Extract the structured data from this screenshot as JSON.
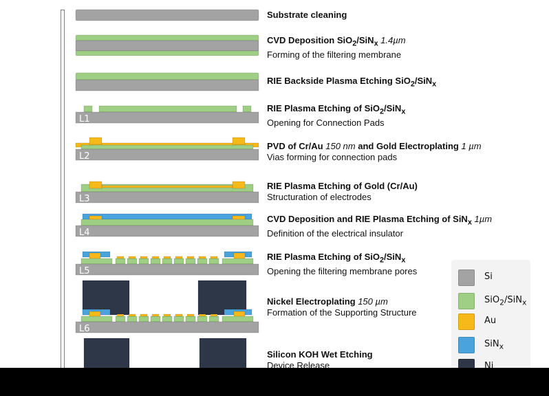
{
  "colors": {
    "si": "#a3a3a3",
    "sio2_sinx": "#9fcf85",
    "au": "#f7b81a",
    "sinx": "#4aa3dc",
    "ni": "#2d3747"
  },
  "steps": [
    {
      "title": "Substrate cleaning"
    },
    {
      "title_a": "CVD Deposition SiO",
      "sub1": "2",
      "title_b": "/SiN",
      "sub2": "x",
      "italic": " 1.4µm",
      "desc": "Forming of the filtering membrane"
    },
    {
      "title_a": "RIE Backside Plasma Etching SiO",
      "sub1": "2",
      "title_b": "/SiN",
      "sub2": "x"
    },
    {
      "title_a": "RIE Plasma Etching of SiO",
      "sub1": "2",
      "title_b": "/SiN",
      "sub2": "x",
      "desc": "Opening for Connection Pads",
      "layer": "L1"
    },
    {
      "title_a": "PVD of Cr/Au",
      "italic1": " 150 nm",
      "title_b": " and Gold Electroplating",
      "italic2": " 1 µm",
      "desc": "Vias forming for connection pads",
      "layer": "L2"
    },
    {
      "title": "RIE Plasma Etching of Gold (Cr/Au)",
      "desc": "Structuration of electrodes",
      "layer": "L3"
    },
    {
      "title_a": "CVD Deposition and RIE Plasma Etching of SiN",
      "sub1": "x",
      "italic": " 1µm",
      "desc": "Definition of the electrical insulator",
      "layer": "L4"
    },
    {
      "title_a": "RIE Plasma Etching of SiO",
      "sub1": "2",
      "title_b": "/SiN",
      "sub2": "x",
      "desc": "Opening the filtering membrane pores",
      "layer": "L5"
    },
    {
      "title": "Nickel Electroplating",
      "italic": " 150 µm",
      "desc": "Formation of the Supporting Structure",
      "layer": "L6"
    },
    {
      "title": "Silicon KOH Wet Etching",
      "desc": "Device Release"
    }
  ],
  "legend": [
    {
      "key": "si",
      "label": "Si"
    },
    {
      "key": "sio2_sinx",
      "label_a": "SiO",
      "sub1": "2",
      "label_b": "/SiN",
      "sub2": "x"
    },
    {
      "key": "au",
      "label": "Au"
    },
    {
      "key": "sinx",
      "label_a": "SiN",
      "sub1": "x"
    },
    {
      "key": "ni",
      "label": "Ni"
    }
  ]
}
